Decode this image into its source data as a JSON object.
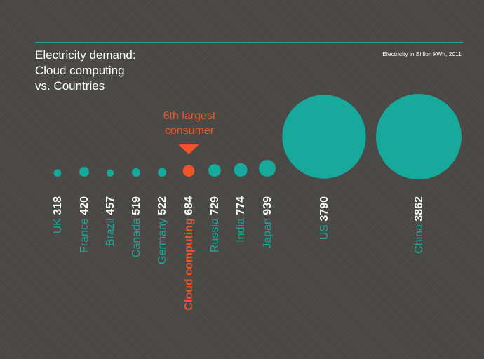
{
  "header": {
    "title_lines": [
      "Electricity demand:",
      "Cloud computing",
      "vs. Countries"
    ],
    "unit_note": "Electricity in Billion kWh, 2011"
  },
  "callout": {
    "lines": [
      "6th largest",
      "consumer"
    ]
  },
  "colors": {
    "background": "#4a4845",
    "country": "#17aa9c",
    "highlight": "#f0552a",
    "value_text": "#ffffff"
  },
  "chart_data": {
    "type": "bubble",
    "title": "Electricity demand: Cloud computing vs. Countries",
    "unit": "Electricity in Billion kWh, 2011",
    "categories": [
      "UK",
      "France",
      "Brazil",
      "Canada",
      "Germany",
      "Cloud computing",
      "Russia",
      "India",
      "Japan",
      "US",
      "China"
    ],
    "values": [
      318,
      420,
      457,
      519,
      522,
      684,
      729,
      774,
      939,
      3790,
      3862
    ],
    "highlight": "Cloud computing"
  }
}
